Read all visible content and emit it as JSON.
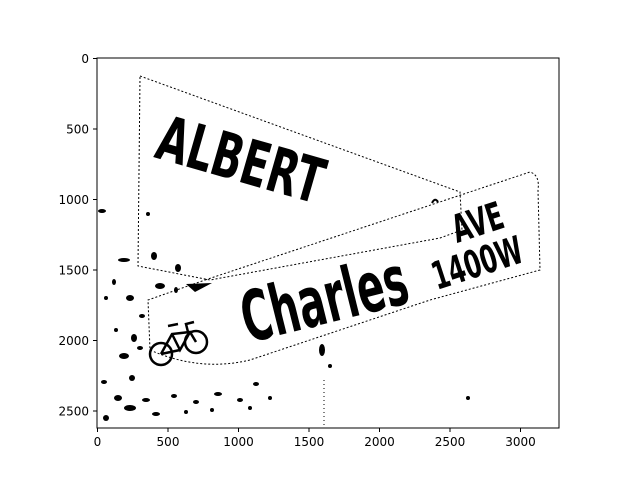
{
  "image": {
    "description_type": "binarized street sign photo displayed on matplotlib axes",
    "sign_top_text": "ALBERT",
    "sign_bottom_text": "Charles",
    "sign_suffix_top": "AVE",
    "sign_suffix_bottom": "1400W"
  },
  "axes": {
    "x_ticks": [
      "0",
      "500",
      "1000",
      "1500",
      "2000",
      "2500",
      "3000"
    ],
    "y_ticks": [
      "0",
      "500",
      "1000",
      "1500",
      "2000",
      "2500"
    ]
  },
  "colors": {
    "ink": "#000000",
    "paper": "#ffffff"
  }
}
